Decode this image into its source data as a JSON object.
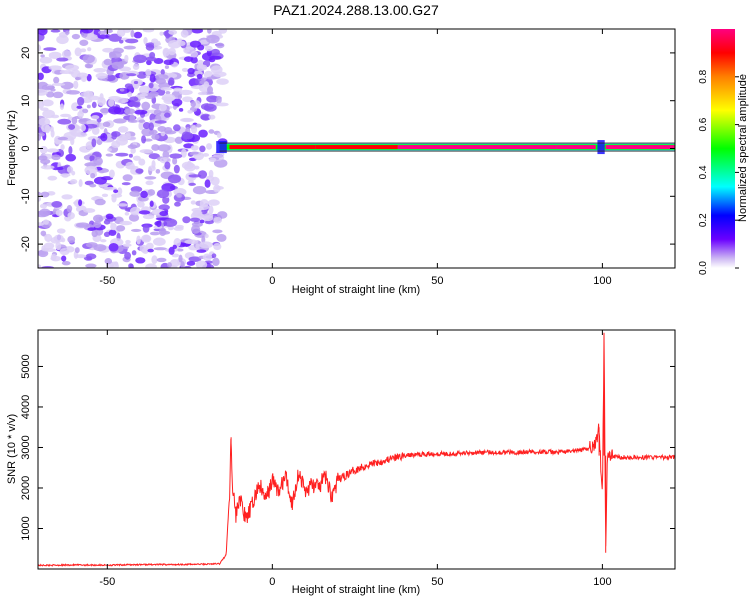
{
  "chart_data": [
    {
      "type": "heatmap",
      "title": "PAZ1.2024.288.13.00.G27",
      "xlabel": "Height of straight line (km)",
      "ylabel": "Frequency (Hz)",
      "xlim": [
        -71,
        122
      ],
      "ylim": [
        -25,
        25
      ],
      "xticks": [
        -50,
        0,
        50,
        100
      ],
      "yticks": [
        -20,
        -10,
        0,
        10,
        20
      ],
      "colorbar": {
        "label": "Normalized spectral amplitude",
        "range": [
          0,
          1
        ],
        "ticks": [
          0.0,
          0.2,
          0.4,
          0.6,
          0.8
        ],
        "colormap": [
          "#ffffff",
          "#cdb8f3",
          "#6a00ff",
          "#0000ff",
          "#00ffff",
          "#00ff00",
          "#ffff00",
          "#ff8000",
          "#ff0000",
          "#ff0080"
        ]
      },
      "noise_region_x": [
        -71,
        -15
      ],
      "signal_line": {
        "x_start": -16,
        "x_end": 122,
        "frequency_hz": 0.3,
        "segments": [
          {
            "x": [
              -16,
              -13
            ],
            "amplitude": 0.35
          },
          {
            "x": [
              -13,
              13
            ],
            "amplitude": 0.85
          },
          {
            "x": [
              13,
              38
            ],
            "amplitude": 0.9
          },
          {
            "x": [
              38,
              86
            ],
            "amplitude": 0.95
          },
          {
            "x": [
              86,
              98
            ],
            "amplitude": 0.95
          },
          {
            "x": [
              98,
              101
            ],
            "amplitude": 0.4
          },
          {
            "x": [
              101,
              122
            ],
            "amplitude": 0.95
          }
        ]
      },
      "grid": false
    },
    {
      "type": "line",
      "xlabel": "Height of straight line (km)",
      "ylabel": "SNR (10 * v/v)",
      "xlim": [
        -71,
        122
      ],
      "ylim": [
        0,
        5900
      ],
      "xticks": [
        -50,
        0,
        50,
        100
      ],
      "yticks": [
        1000,
        2000,
        3000,
        4000,
        5000
      ],
      "series": [
        {
          "color": "#ff2020",
          "points": [
            [
              -71,
              90
            ],
            [
              -60,
              100
            ],
            [
              -50,
              95
            ],
            [
              -40,
              110
            ],
            [
              -30,
              110
            ],
            [
              -20,
              120
            ],
            [
              -16,
              130
            ],
            [
              -14,
              350
            ],
            [
              -13,
              1800
            ],
            [
              -12.5,
              3250
            ],
            [
              -12,
              2000
            ],
            [
              -11,
              1300
            ],
            [
              -10,
              1800
            ],
            [
              -8,
              1200
            ],
            [
              -6,
              1600
            ],
            [
              -4,
              2100
            ],
            [
              -2,
              1700
            ],
            [
              0,
              2200
            ],
            [
              2,
              1900
            ],
            [
              4,
              2300
            ],
            [
              6,
              1600
            ],
            [
              8,
              2400
            ],
            [
              10,
              1900
            ],
            [
              12,
              2100
            ],
            [
              14,
              2000
            ],
            [
              16,
              2300
            ],
            [
              18,
              1800
            ],
            [
              20,
              2200
            ],
            [
              25,
              2450
            ],
            [
              30,
              2600
            ],
            [
              35,
              2700
            ],
            [
              40,
              2800
            ],
            [
              45,
              2830
            ],
            [
              50,
              2850
            ],
            [
              55,
              2850
            ],
            [
              60,
              2870
            ],
            [
              65,
              2880
            ],
            [
              70,
              2880
            ],
            [
              75,
              2880
            ],
            [
              80,
              2900
            ],
            [
              85,
              2880
            ],
            [
              90,
              2900
            ],
            [
              95,
              2950
            ],
            [
              98,
              3100
            ],
            [
              99,
              3500
            ],
            [
              100,
              1700
            ],
            [
              100.5,
              5750
            ],
            [
              101,
              400
            ],
            [
              101.5,
              2900
            ],
            [
              102,
              2800
            ],
            [
              105,
              2760
            ],
            [
              110,
              2750
            ],
            [
              115,
              2760
            ],
            [
              120,
              2750
            ],
            [
              122,
              2760
            ]
          ]
        }
      ],
      "grid": false
    }
  ]
}
